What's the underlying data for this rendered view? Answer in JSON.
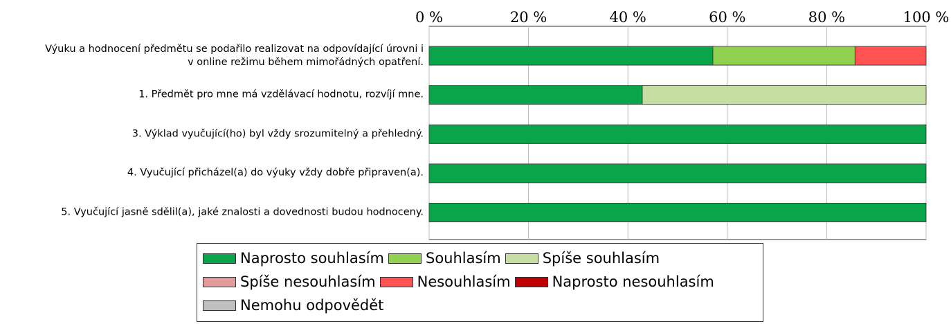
{
  "chart_data": {
    "type": "stacked-bar-horizontal",
    "categories": [
      "Výuku a hodnocení předmětu se podařilo realizovat na odpovídající úrovni i\nv online režimu během mimořádných opatření.",
      "1. Předmět pro mne má vzdělávací hodnotu, rozvíjí mne.",
      "3. Výklad vyučující(ho) byl vždy srozumitelný a přehledný.",
      "4. Vyučující přicházel(a) do výuky vždy dobře připraven(a).",
      "5. Vyučující jasně sdělil(a), jaké znalosti a dovednosti budou hodnoceny."
    ],
    "series": [
      {
        "name": "Naprosto souhlasím",
        "color": "#0aa54b",
        "values": [
          57.1,
          42.9,
          100,
          100,
          100
        ]
      },
      {
        "name": "Souhlasím",
        "color": "#92d050",
        "values": [
          28.6,
          0,
          0,
          0,
          0
        ]
      },
      {
        "name": "Spíše souhlasím",
        "color": "#c6dea2",
        "values": [
          0,
          57.1,
          0,
          0,
          0
        ]
      },
      {
        "name": "Spíše nesouhlasím",
        "color": "#e39b9b",
        "values": [
          0,
          0,
          0,
          0,
          0
        ]
      },
      {
        "name": "Nesouhlasím",
        "color": "#ff5252",
        "values": [
          14.3,
          0,
          0,
          0,
          0
        ]
      },
      {
        "name": "Naprosto nesouhlasím",
        "color": "#c00000",
        "values": [
          0,
          0,
          0,
          0,
          0
        ]
      },
      {
        "name": "Nemohu odpovědět",
        "color": "#c0c0c0",
        "values": [
          0,
          0,
          0,
          0,
          0
        ]
      }
    ],
    "xlim": [
      0,
      100
    ],
    "xticks": [
      {
        "value": 0,
        "label": "0 %"
      },
      {
        "value": 20,
        "label": "20 %"
      },
      {
        "value": 40,
        "label": "40 %"
      },
      {
        "value": 60,
        "label": "60 %"
      },
      {
        "value": 80,
        "label": "80 %"
      },
      {
        "value": 100,
        "label": "100 %"
      }
    ],
    "grid": true
  }
}
